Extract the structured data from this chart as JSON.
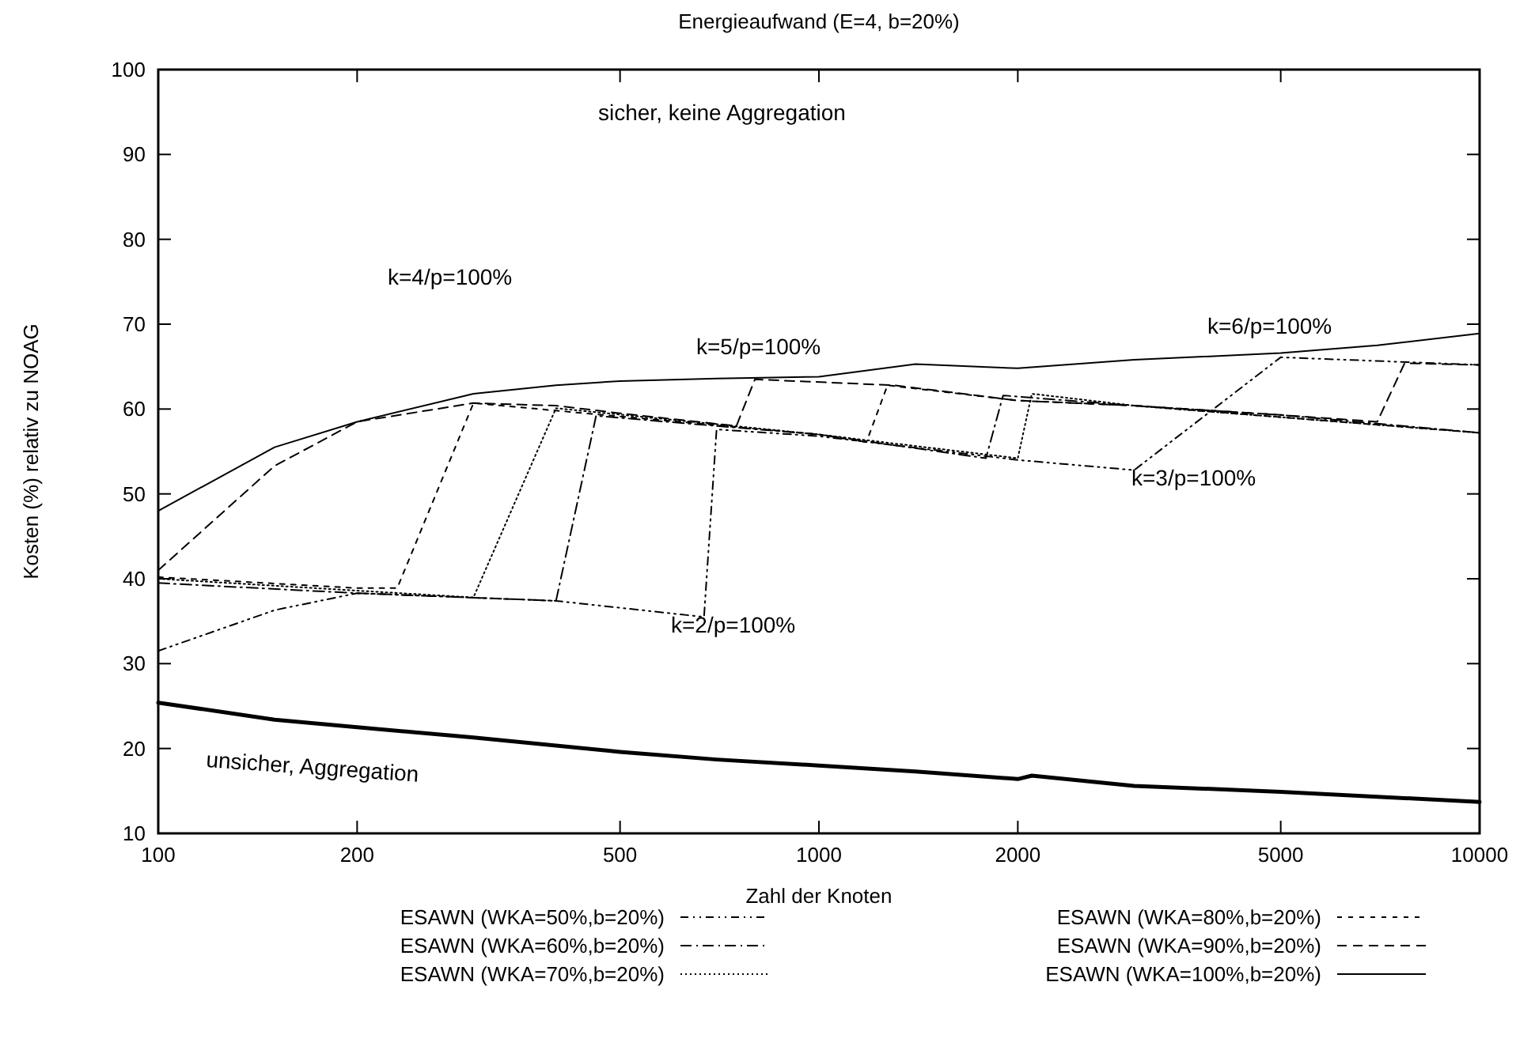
{
  "chart_data": {
    "type": "line",
    "title": "Energieaufwand (E=4, b=20%)",
    "xlabel": "Zahl der Knoten",
    "ylabel": "Kosten (%) relativ zu NOAG",
    "log": "x",
    "xlim": [
      100,
      10000
    ],
    "xticks": [
      100,
      200,
      500,
      1000,
      2000,
      5000,
      10000
    ],
    "ylim": [
      10,
      100
    ],
    "yticks": [
      10,
      20,
      30,
      40,
      50,
      60,
      70,
      80,
      90,
      100
    ],
    "grid": false,
    "legend": "bottom",
    "series": [
      {
        "name": "ESAWN (WKA=50%,b=20%)",
        "color": "#000000",
        "line_style": "dashdotdot",
        "x": [
          100,
          150,
          200,
          400,
          670,
          700,
          1000,
          2000,
          3000,
          5000,
          10000
        ],
        "values": [
          31.5,
          36.3,
          38.3,
          37.4,
          35.5,
          57.6,
          56.8,
          54,
          52.8,
          66.1,
          65.2
        ]
      },
      {
        "name": "ESAWN (WKA=60%,b=20%)",
        "color": "#000000",
        "line_style": "dashdot",
        "x": [
          100,
          200,
          400,
          460,
          1000,
          1790,
          1900,
          3000,
          5000,
          10000
        ],
        "values": [
          39.5,
          38.3,
          37.4,
          59.2,
          57,
          54.2,
          61.6,
          60.4,
          59.3,
          57.2
        ]
      },
      {
        "name": "ESAWN (WKA=70%,b=20%)",
        "color": "#000000",
        "line_style": "dotted",
        "x": [
          100,
          200,
          300,
          400,
          1000,
          2000,
          2100,
          3000,
          10000
        ],
        "values": [
          40,
          38.6,
          37.8,
          60.1,
          57,
          54.2,
          61.8,
          60.4,
          57.2
        ]
      },
      {
        "name": "ESAWN (WKA=80%,b=20%)",
        "color": "#000000",
        "line_style": "shortdashed",
        "x": [
          100,
          200,
          230,
          300,
          1000,
          1180,
          1270,
          2000,
          3000,
          10000
        ],
        "values": [
          40.2,
          38.9,
          38.9,
          60.7,
          57,
          56.1,
          62.8,
          61,
          60.4,
          57.2
        ]
      },
      {
        "name": "ESAWN (WKA=90%,b=20%)",
        "color": "#000000",
        "line_style": "dashed",
        "x": [
          100,
          150,
          200,
          300,
          400,
          500,
          750,
          800,
          1300,
          2000,
          3000,
          5000,
          7000,
          7700,
          10000
        ],
        "values": [
          41,
          53.3,
          58.5,
          60.7,
          60.4,
          59.5,
          58,
          63.5,
          62.8,
          61,
          60.4,
          59.3,
          58.5,
          65.4,
          65.2
        ]
      },
      {
        "name": "ESAWN (WKA=100%,b=20%)",
        "color": "#000000",
        "line_style": "solid",
        "x": [
          100,
          150,
          200,
          300,
          400,
          500,
          700,
          1000,
          1400,
          2000,
          3000,
          5000,
          7000,
          10000
        ],
        "values": [
          48,
          55.5,
          58.5,
          61.8,
          62.8,
          63.3,
          63.6,
          63.8,
          65.3,
          64.8,
          65.8,
          66.6,
          67.5,
          68.9
        ]
      },
      {
        "color": "#000000",
        "line_style": "solid",
        "x": [
          100,
          150,
          200,
          300,
          500,
          700,
          1000,
          1400,
          2000,
          2100,
          3000,
          5000,
          10000
        ],
        "values": [
          25.4,
          23.4,
          22.5,
          21.3,
          19.6,
          18.7,
          18,
          17.3,
          16.4,
          16.8,
          15.6,
          14.9,
          13.7
        ]
      }
    ],
    "annotations": [
      "sicher, keine Aggregation",
      "k=4/p=100%",
      "k=5/p=100%",
      "k=6/p=100%",
      "k=3/p=100%",
      "k=2/p=100%",
      "unsicher, Aggregation"
    ]
  }
}
